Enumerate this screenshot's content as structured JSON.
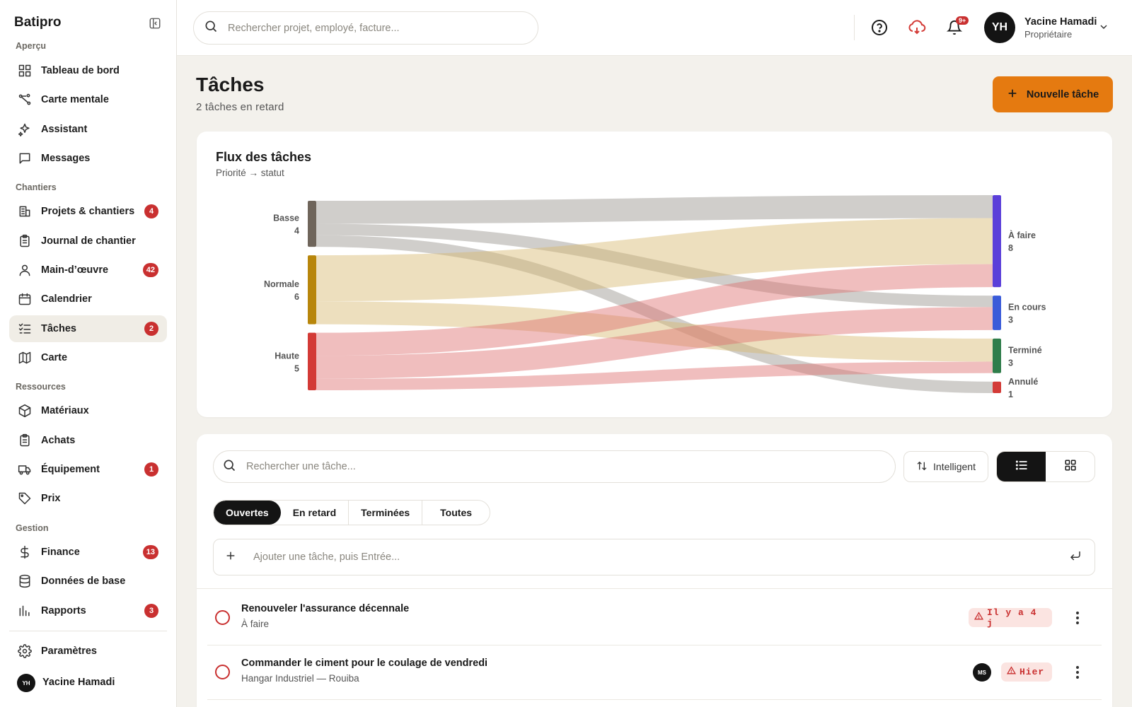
{
  "app": {
    "name": "Batipro"
  },
  "sidebar": {
    "sections": [
      {
        "label": "Aperçu",
        "items": [
          {
            "label": "Tableau de bord",
            "icon": "dashboard-icon"
          },
          {
            "label": "Carte mentale",
            "icon": "mindmap-icon"
          },
          {
            "label": "Assistant",
            "icon": "sparkle-icon"
          },
          {
            "label": "Messages",
            "icon": "message-icon"
          }
        ]
      },
      {
        "label": "Chantiers",
        "items": [
          {
            "label": "Projets & chantiers",
            "icon": "building-icon",
            "badge": "4"
          },
          {
            "label": "Journal de chantier",
            "icon": "clipboard-icon"
          },
          {
            "label": "Main-d’œuvre",
            "icon": "user-icon",
            "badge": "42"
          },
          {
            "label": "Calendrier",
            "icon": "calendar-icon"
          },
          {
            "label": "Tâches",
            "icon": "tasks-icon",
            "badge": "2",
            "active": true
          },
          {
            "label": "Carte",
            "icon": "map-icon"
          }
        ]
      },
      {
        "label": "Ressources",
        "items": [
          {
            "label": "Matériaux",
            "icon": "box-icon"
          },
          {
            "label": "Achats",
            "icon": "clipboard-icon"
          },
          {
            "label": "Équipement",
            "icon": "truck-icon",
            "badge": "1"
          },
          {
            "label": "Prix",
            "icon": "tag-icon"
          }
        ]
      },
      {
        "label": "Gestion",
        "items": [
          {
            "label": "Finance",
            "icon": "dollar-icon",
            "badge": "13"
          },
          {
            "label": "Données de base",
            "icon": "database-icon"
          },
          {
            "label": "Rapports",
            "icon": "bar-chart-icon",
            "badge": "3"
          }
        ]
      }
    ],
    "settings_label": "Paramètres",
    "user": {
      "initials": "YH",
      "name": "Yacine Hamadi"
    }
  },
  "topbar": {
    "search_placeholder": "Rechercher projet, employé, facture...",
    "notif_badge": "9+",
    "user": {
      "initials": "YH",
      "name": "Yacine Hamadi",
      "role": "Propriétaire"
    }
  },
  "page": {
    "title": "Tâches",
    "subtitle": "2 tâches en retard",
    "new_button": "Nouvelle tâche"
  },
  "chart": {
    "title": "Flux des tâches",
    "subtitle": "Priorité → statut"
  },
  "chart_data": {
    "type": "sankey",
    "title": "Flux des tâches",
    "subtitle": "Priorité → statut",
    "sources": [
      {
        "name": "Basse",
        "value": 4,
        "color": "#6f655b"
      },
      {
        "name": "Normale",
        "value": 6,
        "color": "#b8860b"
      },
      {
        "name": "Haute",
        "value": 5,
        "color": "#d33a36"
      }
    ],
    "targets": [
      {
        "name": "À faire",
        "value": 8,
        "color": "#5b3fd9"
      },
      {
        "name": "En cours",
        "value": 3,
        "color": "#3a5bd9"
      },
      {
        "name": "Terminé",
        "value": 3,
        "color": "#2f7d4a"
      },
      {
        "name": "Annulé",
        "value": 1,
        "color": "#d33a36"
      }
    ],
    "links": [
      {
        "source": "Basse",
        "target": "À faire",
        "value": 2
      },
      {
        "source": "Basse",
        "target": "En cours",
        "value": 1
      },
      {
        "source": "Basse",
        "target": "Annulé",
        "value": 1
      },
      {
        "source": "Normale",
        "target": "À faire",
        "value": 4
      },
      {
        "source": "Normale",
        "target": "Terminé",
        "value": 2
      },
      {
        "source": "Haute",
        "target": "À faire",
        "value": 2
      },
      {
        "source": "Haute",
        "target": "En cours",
        "value": 2
      },
      {
        "source": "Haute",
        "target": "Terminé",
        "value": 1
      }
    ]
  },
  "tasks_panel": {
    "search_placeholder": "Rechercher une tâche...",
    "sort_label": "Intelligent",
    "filters": [
      "Ouvertes",
      "En retard",
      "Terminées",
      "Toutes"
    ],
    "active_filter": "Ouvertes",
    "add_placeholder": "Ajouter une tâche, puis Entrée...",
    "tasks": [
      {
        "title": "Renouveler l'assurance décennale",
        "subtitle": "À faire",
        "due": "Il y a 4 j"
      },
      {
        "title": "Commander le ciment pour le coulage de vendredi",
        "subtitle": "Hangar Industriel — Rouiba",
        "due": "Hier",
        "assignee": "MS"
      }
    ]
  },
  "colors": {
    "accent": "#e57a10",
    "danger": "#c93030",
    "dark": "#141414"
  }
}
